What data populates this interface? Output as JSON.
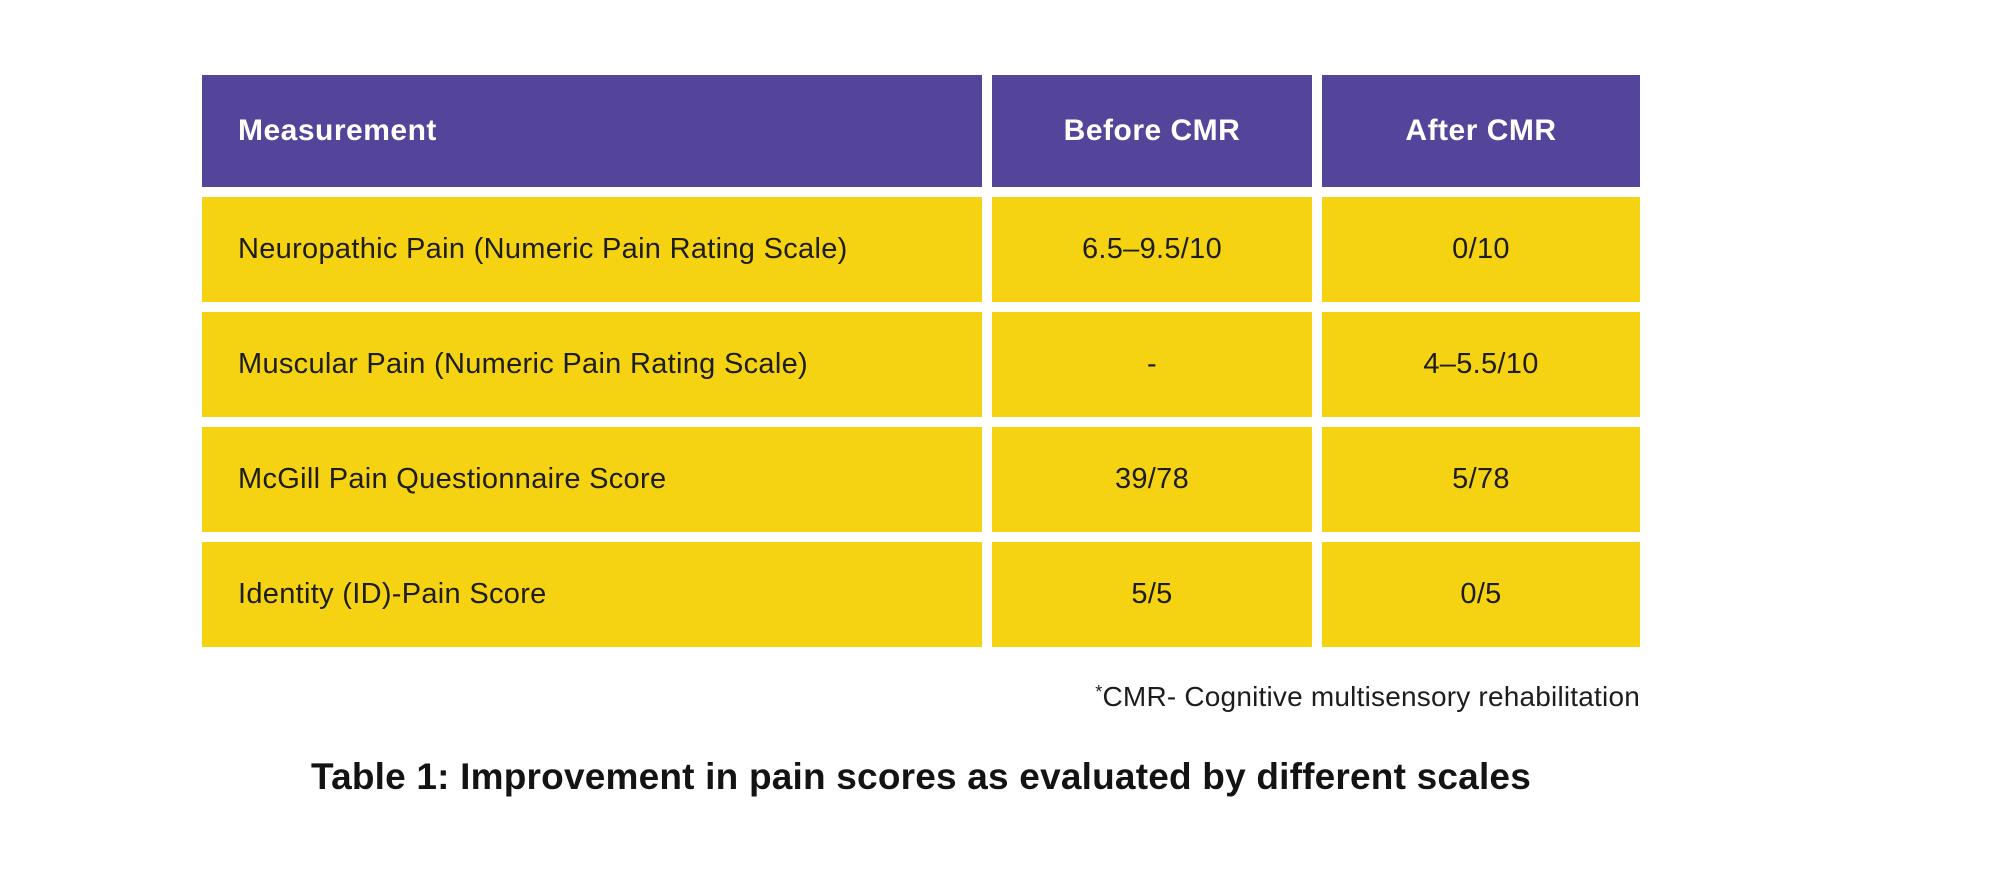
{
  "chart_data": {
    "type": "table",
    "title": "Table 1: Improvement in pain scores as evaluated by different scales",
    "columns": [
      "Measurement",
      "Before CMR",
      "After CMR"
    ],
    "rows": [
      {
        "measurement": "Neuropathic Pain (Numeric Pain Rating Scale)",
        "before": "6.5–9.5/10",
        "after": "0/10"
      },
      {
        "measurement": "Muscular Pain (Numeric Pain Rating Scale)",
        "before": "-",
        "after": "4–5.5/10"
      },
      {
        "measurement": "McGill Pain Questionnaire Score",
        "before": "39/78",
        "after": "5/78"
      },
      {
        "measurement": "Identity (ID)-Pain Score",
        "before": "5/5",
        "after": "0/5"
      }
    ],
    "footnote": {
      "marker": "*",
      "text": "CMR- Cognitive multisensory rehabilitation"
    },
    "layout": {
      "legend": "none",
      "grid": "off"
    }
  },
  "colors": {
    "header_bg": "#54459B",
    "header_text": "#FFFFFF",
    "cell_bg": "#F5D313",
    "cell_text": "#1D1D1B"
  }
}
